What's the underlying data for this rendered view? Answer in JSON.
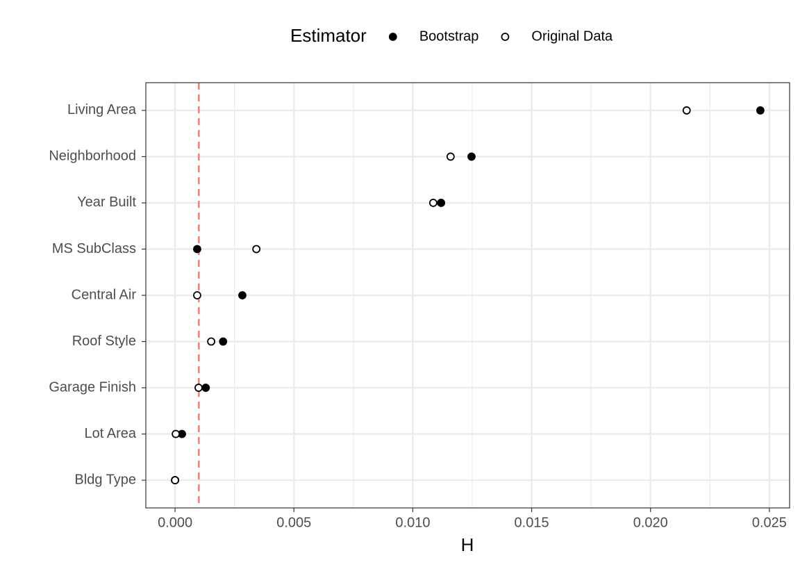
{
  "chart_data": {
    "type": "dot",
    "legend_title": "Estimator",
    "legend_position": "top",
    "x_label": "H",
    "categories": [
      "Living Area",
      "Neighborhood",
      "Year Built",
      "MS SubClass",
      "Central Air",
      "Roof Style",
      "Garage Finish",
      "Lot Area",
      "Bldg Type"
    ],
    "series": [
      {
        "name": "Bootstrap",
        "color": "#000000",
        "filled": true,
        "values": [
          0.02462,
          0.01247,
          0.01119,
          0.00093,
          0.00283,
          0.00202,
          0.00129,
          0.00029,
          0.0
        ]
      },
      {
        "name": "Original Data",
        "color": "#000000",
        "filled": false,
        "values": [
          0.02152,
          0.01159,
          0.01086,
          0.00342,
          0.00093,
          0.00152,
          0.00099,
          3e-05,
          0.0
        ]
      }
    ],
    "xlim": [
      -0.00123,
      0.02585
    ],
    "xticks": [
      {
        "value": 0,
        "label": "0.000"
      },
      {
        "value": 0.005,
        "label": "0.005"
      },
      {
        "value": 0.01,
        "label": "0.010"
      },
      {
        "value": 0.015,
        "label": "0.015"
      },
      {
        "value": 0.02,
        "label": "0.020"
      },
      {
        "value": 0.025,
        "label": "0.025"
      }
    ],
    "xminor": [
      0.0025,
      0.0075,
      0.0125,
      0.0175,
      0.0225
    ],
    "reference_line": {
      "value": 0.001,
      "color": "#f8766d",
      "dashed": true
    },
    "grid": true
  }
}
